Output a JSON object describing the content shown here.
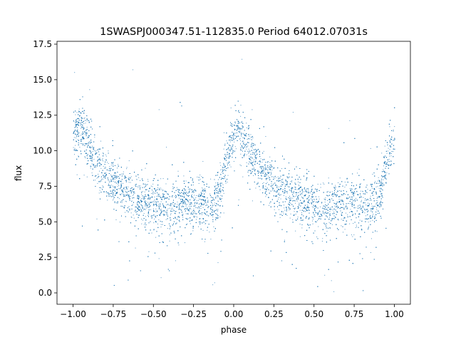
{
  "chart_data": {
    "type": "scatter",
    "title": "1SWASPJ000347.51-112835.0 Period 64012.07031s",
    "xlabel": "phase",
    "ylabel": "flux",
    "xlim": [
      -1.1,
      1.1
    ],
    "ylim": [
      -0.8,
      17.7
    ],
    "xticks": [
      "−1.00",
      "−0.75",
      "−0.50",
      "−0.25",
      "0.00",
      "0.25",
      "0.50",
      "0.75",
      "1.00"
    ],
    "xtick_values": [
      -1.0,
      -0.75,
      -0.5,
      -0.25,
      0.0,
      0.25,
      0.5,
      0.75,
      1.0
    ],
    "yticks": [
      "0.0",
      "2.5",
      "5.0",
      "7.5",
      "10.0",
      "12.5",
      "15.0",
      "17.5"
    ],
    "ytick_values": [
      0.0,
      2.5,
      5.0,
      7.5,
      10.0,
      12.5,
      15.0,
      17.5
    ],
    "marker_color": "#1f77b4",
    "series": [
      {
        "values_description_points": [
          [
            -1.0,
            11.2
          ],
          [
            -0.95,
            11.8
          ],
          [
            -0.9,
            10.3
          ],
          [
            -0.85,
            9.1
          ],
          [
            -0.8,
            8.3
          ],
          [
            -0.75,
            7.7
          ],
          [
            -0.7,
            7.2
          ],
          [
            -0.65,
            6.9
          ],
          [
            -0.6,
            6.6
          ],
          [
            -0.55,
            6.4
          ],
          [
            -0.5,
            6.2
          ],
          [
            -0.45,
            6.0
          ],
          [
            -0.4,
            6.0
          ],
          [
            -0.35,
            6.2
          ],
          [
            -0.3,
            6.4
          ],
          [
            -0.25,
            6.5
          ],
          [
            -0.2,
            6.3
          ],
          [
            -0.15,
            6.0
          ],
          [
            -0.1,
            7.0
          ],
          [
            -0.05,
            9.2
          ],
          [
            0.0,
            11.2
          ],
          [
            0.02,
            11.8
          ],
          [
            0.05,
            11.0
          ],
          [
            0.1,
            9.8
          ],
          [
            0.15,
            9.0
          ],
          [
            0.2,
            8.3
          ],
          [
            0.25,
            7.7
          ],
          [
            0.3,
            7.2
          ],
          [
            0.35,
            6.9
          ],
          [
            0.4,
            6.6
          ],
          [
            0.45,
            6.4
          ],
          [
            0.5,
            6.2
          ],
          [
            0.55,
            6.0
          ],
          [
            0.6,
            6.0
          ],
          [
            0.65,
            6.2
          ],
          [
            0.7,
            6.4
          ],
          [
            0.75,
            6.5
          ],
          [
            0.8,
            6.3
          ],
          [
            0.85,
            6.0
          ],
          [
            0.9,
            6.8
          ],
          [
            0.95,
            9.2
          ],
          [
            1.0,
            11.2
          ]
        ]
      }
    ]
  }
}
